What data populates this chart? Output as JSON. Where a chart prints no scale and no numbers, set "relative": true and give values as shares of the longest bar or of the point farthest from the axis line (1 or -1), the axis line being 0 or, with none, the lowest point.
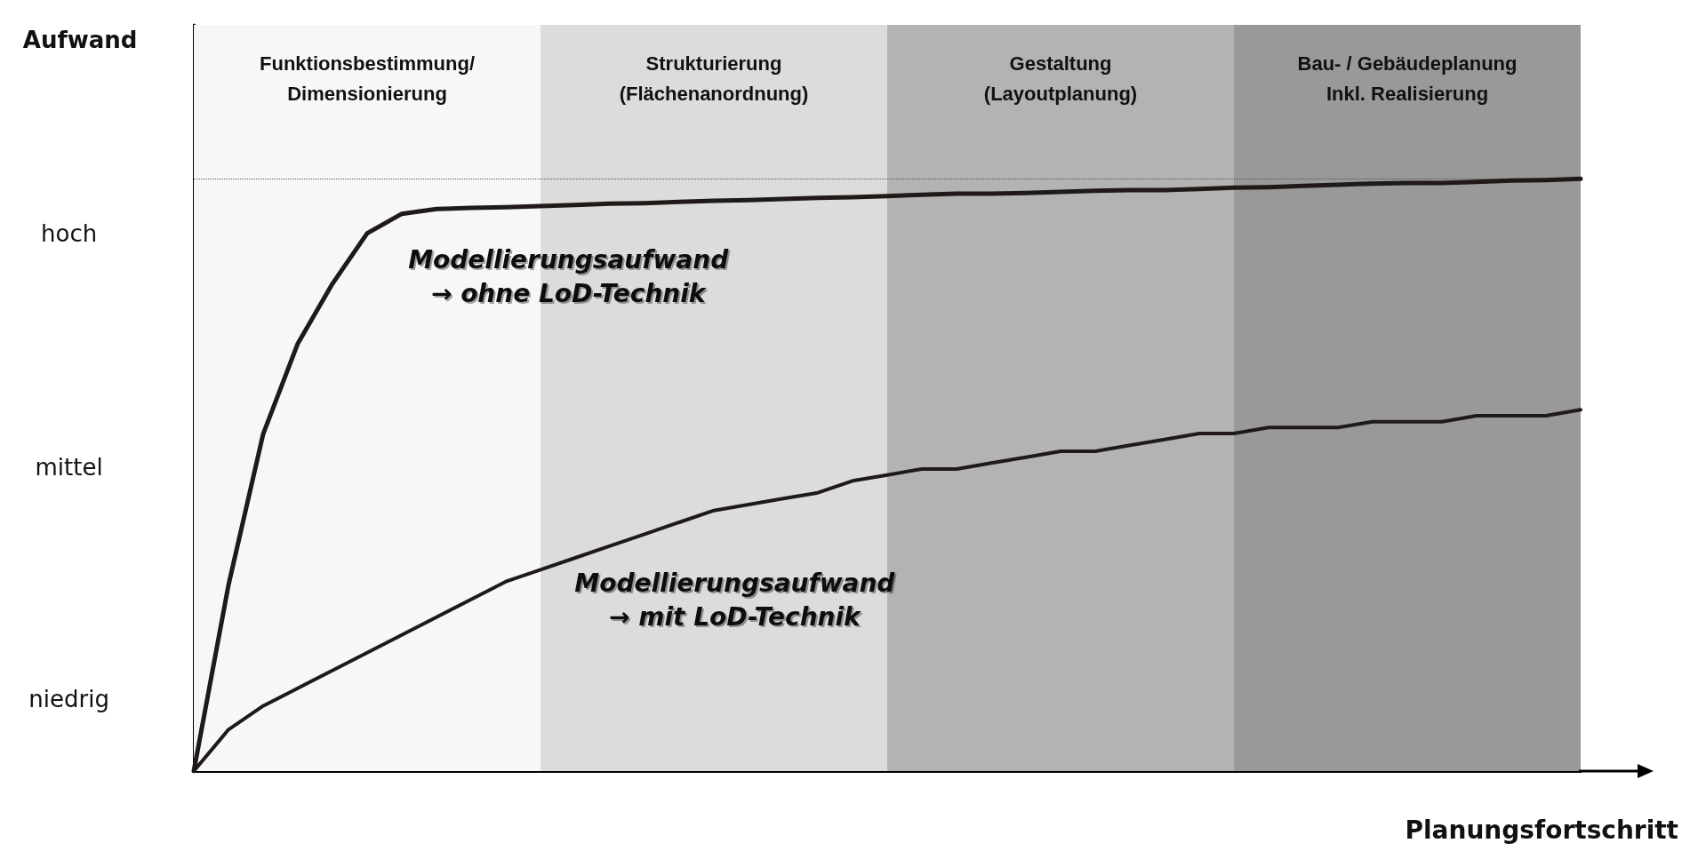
{
  "chart_data": {
    "type": "line",
    "relative": true,
    "xlabel": "Planungsfortschritt",
    "categories": [
      null,
      null,
      null,
      null,
      null,
      null,
      null,
      null,
      null,
      null,
      null,
      null,
      null,
      null,
      null,
      null,
      null,
      null,
      null,
      null,
      null,
      null,
      null,
      null,
      null,
      null,
      null,
      null,
      null,
      null,
      null,
      null,
      null,
      null,
      null,
      null,
      null,
      null,
      null,
      null,
      null
    ],
    "grid": false,
    "marker": "none",
    "line_style": "solid",
    "series": [
      {
        "color": "#1f1a17",
        "values": [
          0,
          0.314,
          0.569,
          0.722,
          0.823,
          0.908,
          0.941,
          0.949,
          0.951,
          0.952,
          0.954,
          0.956,
          0.958,
          0.959,
          0.961,
          0.963,
          0.964,
          0.966,
          0.968,
          0.969,
          0.971,
          0.973,
          0.975,
          0.975,
          0.976,
          0.978,
          0.98,
          0.981,
          0.981,
          0.983,
          0.985,
          0.986,
          0.988,
          0.99,
          0.992,
          0.993,
          0.993,
          0.995,
          0.997,
          0.998,
          1
        ]
      },
      {
        "color": "#1f1a17",
        "values": [
          0,
          0.07,
          0.11,
          0.14,
          0.17,
          0.2,
          0.23,
          0.26,
          0.29,
          0.32,
          0.34,
          0.36,
          0.38,
          0.4,
          0.42,
          0.44,
          0.45,
          0.46,
          0.47,
          0.49,
          0.5,
          0.51,
          0.51,
          0.52,
          0.53,
          0.54,
          0.54,
          0.55,
          0.56,
          0.57,
          0.57,
          0.58,
          0.58,
          0.58,
          0.59,
          0.59,
          0.59,
          0.6,
          0.6,
          0.6,
          0.61
        ]
      }
    ],
    "ref_lines": [
      {
        "axis": "y",
        "value": 1,
        "line_style": "dotted",
        "color": "#555555"
      }
    ],
    "annotations": [
      "Aufwand",
      "Funktionsbestimmung/\nDimensionierung",
      "Strukturierung\n(Flächenanordnung)",
      "Gestaltung\n(Layoutplanung)",
      "Bau- / Gebäudeplanung\nInkl. Realisierung",
      "hoch",
      "mittel",
      "niedrig",
      "Modellierungsaufwand\n→ ohne LoD-Technik",
      "Modellierungsaufwand\n→ mit LoD-Technik"
    ]
  }
}
